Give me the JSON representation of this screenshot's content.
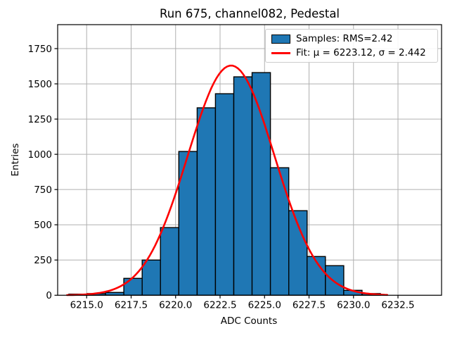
{
  "chart_data": {
    "type": "bar",
    "subtype": "histogram-with-gaussian-fit",
    "title": "Run 675, channel082, Pedestal",
    "xlabel": "ADC Counts",
    "ylabel": "Entries",
    "xlim": [
      6213.37,
      6234.95
    ],
    "ylim": [
      0,
      1920
    ],
    "grid": true,
    "xticks": [
      6215.0,
      6217.5,
      6220.0,
      6222.5,
      6225.0,
      6227.5,
      6230.0,
      6232.5
    ],
    "xtick_labels": [
      "6215.0",
      "6217.5",
      "6220.0",
      "6222.5",
      "6225.0",
      "6227.5",
      "6230.0",
      "6232.5"
    ],
    "yticks": [
      0,
      250,
      500,
      750,
      1000,
      1250,
      1500,
      1750
    ],
    "ytick_labels": [
      "0",
      "250",
      "500",
      "750",
      "1000",
      "1250",
      "1500",
      "1750"
    ],
    "histogram": {
      "bin_start": 6214.0,
      "bin_width": 1.03,
      "counts": [
        8,
        12,
        20,
        120,
        250,
        480,
        1020,
        1330,
        1430,
        1550,
        1580,
        905,
        600,
        275,
        210,
        35,
        12
      ],
      "fill_color": "#1f77b4",
      "edge_color": "#000000"
    },
    "fit": {
      "mu": 6223.12,
      "sigma": 2.442,
      "peak": 1630,
      "x_range": [
        6213.9,
        6231.9
      ],
      "color": "#ff0000"
    },
    "legend": {
      "position": "upper right",
      "entries": [
        {
          "type": "patch",
          "color": "#1f77b4",
          "label": "Samples: RMS=2.42"
        },
        {
          "type": "line",
          "color": "#ff0000",
          "label": "Fit: μ = 6223.12, σ = 2.442"
        }
      ]
    }
  }
}
